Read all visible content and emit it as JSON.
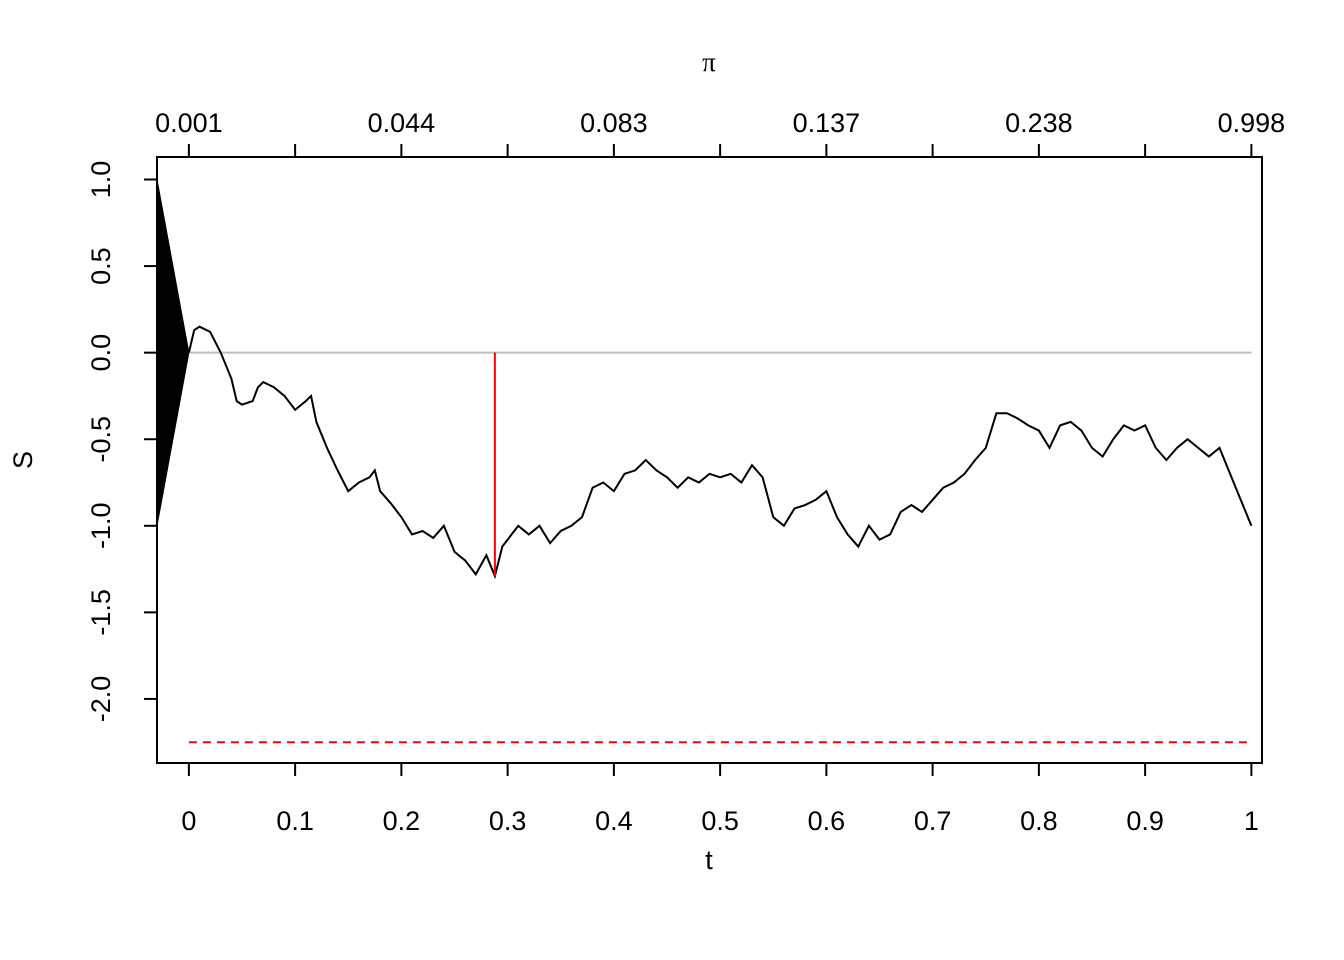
{
  "chart_data": {
    "type": "line",
    "xlabel": "t",
    "ylabel": "S",
    "x2label": "π",
    "xlim": [
      -0.03,
      1.01
    ],
    "ylim": [
      -2.37,
      1.13
    ],
    "xticks": [
      0,
      0.1,
      0.2,
      0.3,
      0.4,
      0.5,
      0.6,
      0.7,
      0.8,
      0.9,
      1
    ],
    "yticks": [
      {
        "value": 1,
        "label": "1.0"
      },
      0.5,
      {
        "value": 0,
        "label": "0.0"
      },
      -0.5,
      {
        "value": -1,
        "label": "-1.0"
      },
      -1.5,
      {
        "value": -2,
        "label": "-2.0"
      }
    ],
    "x2ticks": [
      0,
      0.1,
      0.2,
      0.3,
      0.4,
      0.5,
      0.6,
      0.7,
      0.8,
      0.9,
      1
    ],
    "x2ticklabels": [
      {
        "value": 0,
        "label": "0.001"
      },
      {
        "value": 0.2,
        "label": "0.044"
      },
      {
        "value": 0.4,
        "label": "0.083"
      },
      {
        "value": 0.6,
        "label": "0.137"
      },
      {
        "value": 0.8,
        "label": "0.238"
      },
      {
        "value": 1,
        "label": "0.998"
      }
    ],
    "path": {
      "color": "#000000",
      "x": [
        0,
        0.005,
        0.01,
        0.02,
        0.03,
        0.04,
        0.045,
        0.05,
        0.06,
        0.065,
        0.07,
        0.08,
        0.09,
        0.1,
        0.11,
        0.115,
        0.12,
        0.13,
        0.14,
        0.15,
        0.16,
        0.17,
        0.175,
        0.18,
        0.19,
        0.2,
        0.21,
        0.22,
        0.23,
        0.24,
        0.25,
        0.26,
        0.27,
        0.28,
        0.288,
        0.295,
        0.3,
        0.31,
        0.32,
        0.33,
        0.34,
        0.35,
        0.36,
        0.37,
        0.38,
        0.39,
        0.4,
        0.41,
        0.42,
        0.43,
        0.44,
        0.45,
        0.46,
        0.47,
        0.48,
        0.49,
        0.5,
        0.51,
        0.52,
        0.53,
        0.54,
        0.55,
        0.56,
        0.57,
        0.58,
        0.59,
        0.6,
        0.61,
        0.62,
        0.63,
        0.64,
        0.65,
        0.66,
        0.67,
        0.68,
        0.69,
        0.7,
        0.71,
        0.72,
        0.73,
        0.74,
        0.75,
        0.76,
        0.77,
        0.78,
        0.79,
        0.8,
        0.81,
        0.82,
        0.83,
        0.84,
        0.85,
        0.86,
        0.87,
        0.88,
        0.89,
        0.9,
        0.91,
        0.92,
        0.93,
        0.94,
        0.95,
        0.96,
        0.97,
        0.98,
        0.99,
        1
      ],
      "values": [
        0,
        0.13,
        0.15,
        0.12,
        0,
        -0.15,
        -0.28,
        -0.3,
        -0.28,
        -0.2,
        -0.17,
        -0.2,
        -0.25,
        -0.33,
        -0.28,
        -0.25,
        -0.4,
        -0.55,
        -0.68,
        -0.8,
        -0.75,
        -0.72,
        -0.68,
        -0.8,
        -0.87,
        -0.95,
        -1.05,
        -1.03,
        -1.07,
        -1,
        -1.15,
        -1.2,
        -1.28,
        -1.17,
        -1.29,
        -1.12,
        -1.08,
        -1,
        -1.05,
        -1,
        -1.1,
        -1.03,
        -1,
        -0.95,
        -0.78,
        -0.75,
        -0.8,
        -0.7,
        -0.68,
        -0.62,
        -0.68,
        -0.72,
        -0.78,
        -0.72,
        -0.75,
        -0.7,
        -0.72,
        -0.7,
        -0.75,
        -0.65,
        -0.72,
        -0.95,
        -1,
        -0.9,
        -0.88,
        -0.85,
        -0.8,
        -0.95,
        -1.05,
        -1.12,
        -1,
        -1.08,
        -1.05,
        -0.92,
        -0.88,
        -0.92,
        -0.85,
        -0.78,
        -0.75,
        -0.7,
        -0.62,
        -0.55,
        -0.35,
        -0.35,
        -0.38,
        -0.42,
        -0.45,
        -0.55,
        -0.42,
        -0.4,
        -0.45,
        -0.55,
        -0.6,
        -0.5,
        -0.42,
        -0.45,
        -0.42,
        -0.55,
        -0.62,
        -0.55,
        -0.5,
        -0.55,
        -0.6,
        -0.55,
        -0.7,
        -0.85,
        -1
      ]
    },
    "fan": {
      "color": "#000000",
      "x": [
        -0.03,
        0,
        -0.03
      ],
      "values": [
        1,
        0,
        -1
      ]
    },
    "hlines": [
      {
        "y": 0,
        "x_range": [
          0,
          1
        ],
        "color": "#bebebe",
        "dashed": false
      },
      {
        "y": -2.25,
        "x_range": [
          0,
          1
        ],
        "color": "#ff0000",
        "dashed": true
      }
    ],
    "vline": {
      "x": 0.288,
      "y": [
        0,
        -1.29
      ],
      "color": "#ff0000"
    }
  }
}
